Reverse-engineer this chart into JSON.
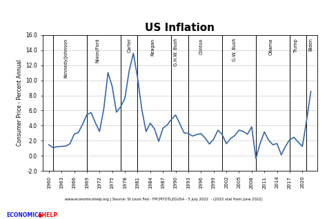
{
  "title": "US Inflation",
  "ylabel": "Consumer Price - Percent Annual",
  "footnote": "www.economicshelp.org | Source: St Louis Fed - FPCPITOTLZGUSA - 5 July 2022  - (2022 stat from June 2022)",
  "ylim": [
    -2.0,
    16.0
  ],
  "yticks": [
    -2.0,
    0.0,
    2.0,
    4.0,
    6.0,
    8.0,
    10.0,
    12.0,
    14.0,
    16.0
  ],
  "xticks": [
    1960,
    1963,
    1966,
    1969,
    1972,
    1975,
    1978,
    1981,
    1984,
    1987,
    1990,
    1993,
    1996,
    1999,
    2002,
    2005,
    2008,
    2011,
    2014,
    2017,
    2020
  ],
  "line_color": "#3366AA",
  "line_width": 1.2,
  "president_lines": [
    1961,
    1969,
    1977,
    1981,
    1989,
    1993,
    2001,
    2009,
    2017,
    2021
  ],
  "president_labels": [
    {
      "name": "Kennedy/Johnson",
      "x": 1964.0
    },
    {
      "name": "Nixon/Ford",
      "x": 1971.5
    },
    {
      "name": "Carter",
      "x": 1979.0
    },
    {
      "name": "Reagan",
      "x": 1984.5
    },
    {
      "name": "G.H.W. Bush",
      "x": 1990.0
    },
    {
      "name": "Clinton",
      "x": 1996.0
    },
    {
      "name": "G.W. Bush",
      "x": 2004.0
    },
    {
      "name": "Obama",
      "x": 2012.5
    },
    {
      "name": "Trump",
      "x": 2018.5
    },
    {
      "name": "Biden",
      "x": 2022.0
    }
  ],
  "data": [
    [
      1960,
      1.46
    ],
    [
      1961,
      1.07
    ],
    [
      1962,
      1.2
    ],
    [
      1963,
      1.24
    ],
    [
      1964,
      1.28
    ],
    [
      1965,
      1.59
    ],
    [
      1966,
      2.86
    ],
    [
      1967,
      3.09
    ],
    [
      1968,
      4.19
    ],
    [
      1969,
      5.46
    ],
    [
      1970,
      5.72
    ],
    [
      1971,
      4.38
    ],
    [
      1972,
      3.21
    ],
    [
      1973,
      6.22
    ],
    [
      1974,
      11.03
    ],
    [
      1975,
      9.14
    ],
    [
      1976,
      5.77
    ],
    [
      1977,
      6.5
    ],
    [
      1978,
      7.63
    ],
    [
      1979,
      11.25
    ],
    [
      1980,
      13.58
    ],
    [
      1981,
      10.33
    ],
    [
      1982,
      6.13
    ],
    [
      1983,
      3.21
    ],
    [
      1984,
      4.32
    ],
    [
      1985,
      3.55
    ],
    [
      1986,
      1.9
    ],
    [
      1987,
      3.66
    ],
    [
      1988,
      4.08
    ],
    [
      1989,
      4.83
    ],
    [
      1990,
      5.4
    ],
    [
      1991,
      4.23
    ],
    [
      1992,
      3.03
    ],
    [
      1993,
      2.96
    ],
    [
      1994,
      2.61
    ],
    [
      1995,
      2.81
    ],
    [
      1996,
      2.93
    ],
    [
      1997,
      2.34
    ],
    [
      1998,
      1.55
    ],
    [
      1999,
      2.19
    ],
    [
      2000,
      3.38
    ],
    [
      2001,
      2.83
    ],
    [
      2002,
      1.59
    ],
    [
      2003,
      2.27
    ],
    [
      2004,
      2.68
    ],
    [
      2005,
      3.39
    ],
    [
      2006,
      3.23
    ],
    [
      2007,
      2.85
    ],
    [
      2008,
      3.84
    ],
    [
      2009,
      -0.36
    ],
    [
      2010,
      1.64
    ],
    [
      2011,
      3.16
    ],
    [
      2012,
      2.07
    ],
    [
      2013,
      1.46
    ],
    [
      2014,
      1.62
    ],
    [
      2015,
      0.12
    ],
    [
      2016,
      1.26
    ],
    [
      2017,
      2.13
    ],
    [
      2018,
      2.44
    ],
    [
      2019,
      1.81
    ],
    [
      2020,
      1.23
    ],
    [
      2021,
      4.7
    ],
    [
      2022,
      8.52
    ]
  ],
  "bg_color": "#f5f5f0",
  "xlim": [
    1958.5,
    2023.5
  ]
}
